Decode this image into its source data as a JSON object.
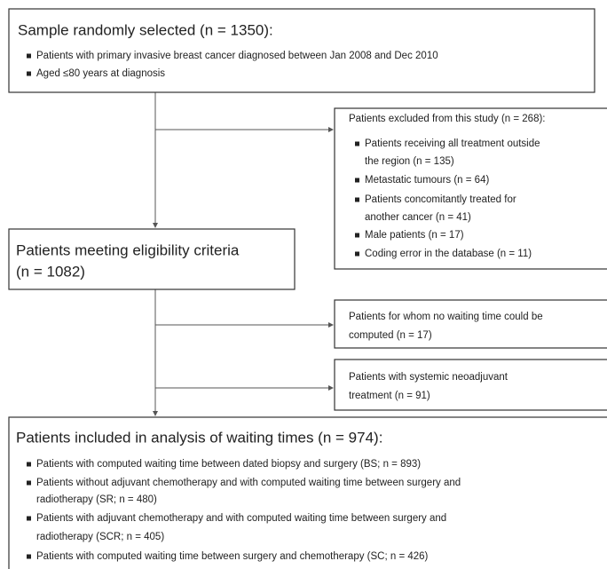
{
  "boxes": [
    {
      "title": "Sample randomly selected (n = 1350):",
      "bullets": [
        [
          "Patients with primary invasive breast cancer diagnosed between Jan 2008 and Dec 2010"
        ],
        [
          "Aged ≤80 years at diagnosis"
        ]
      ]
    },
    {
      "title": "Patients excluded from this study (n = 268):",
      "bullets": [
        [
          "Patients receiving all treatment outside",
          "the region (n = 135)"
        ],
        [
          "Metastatic tumours (n = 64)"
        ],
        [
          "Patients concomitantly treated for",
          "another cancer (n = 41)"
        ],
        [
          "Male patients (n = 17)"
        ],
        [
          "Coding error in the database (n = 11)"
        ]
      ]
    },
    {
      "title": "Patients meeting eligibility criteria",
      "subtitle": "(n = 1082)"
    },
    {
      "lines": [
        "Patients for whom no waiting time could be",
        "computed (n = 17)"
      ]
    },
    {
      "lines": [
        "Patients with systemic neoadjuvant",
        "treatment (n = 91)"
      ]
    },
    {
      "title": "Patients included in analysis of waiting times (n = 974):",
      "bullets": [
        [
          "Patients with computed waiting time between dated biopsy and surgery (BS; n = 893)"
        ],
        [
          "Patients without adjuvant chemotherapy and with computed waiting time between surgery and",
          "radiotherapy (SR; n = 480)"
        ],
        [
          "Patients with adjuvant chemotherapy and with computed waiting time between surgery and",
          "radiotherapy (SCR; n = 405)"
        ],
        [
          "Patients with computed waiting time between surgery and chemotherapy (SC; n = 426)"
        ]
      ]
    }
  ]
}
